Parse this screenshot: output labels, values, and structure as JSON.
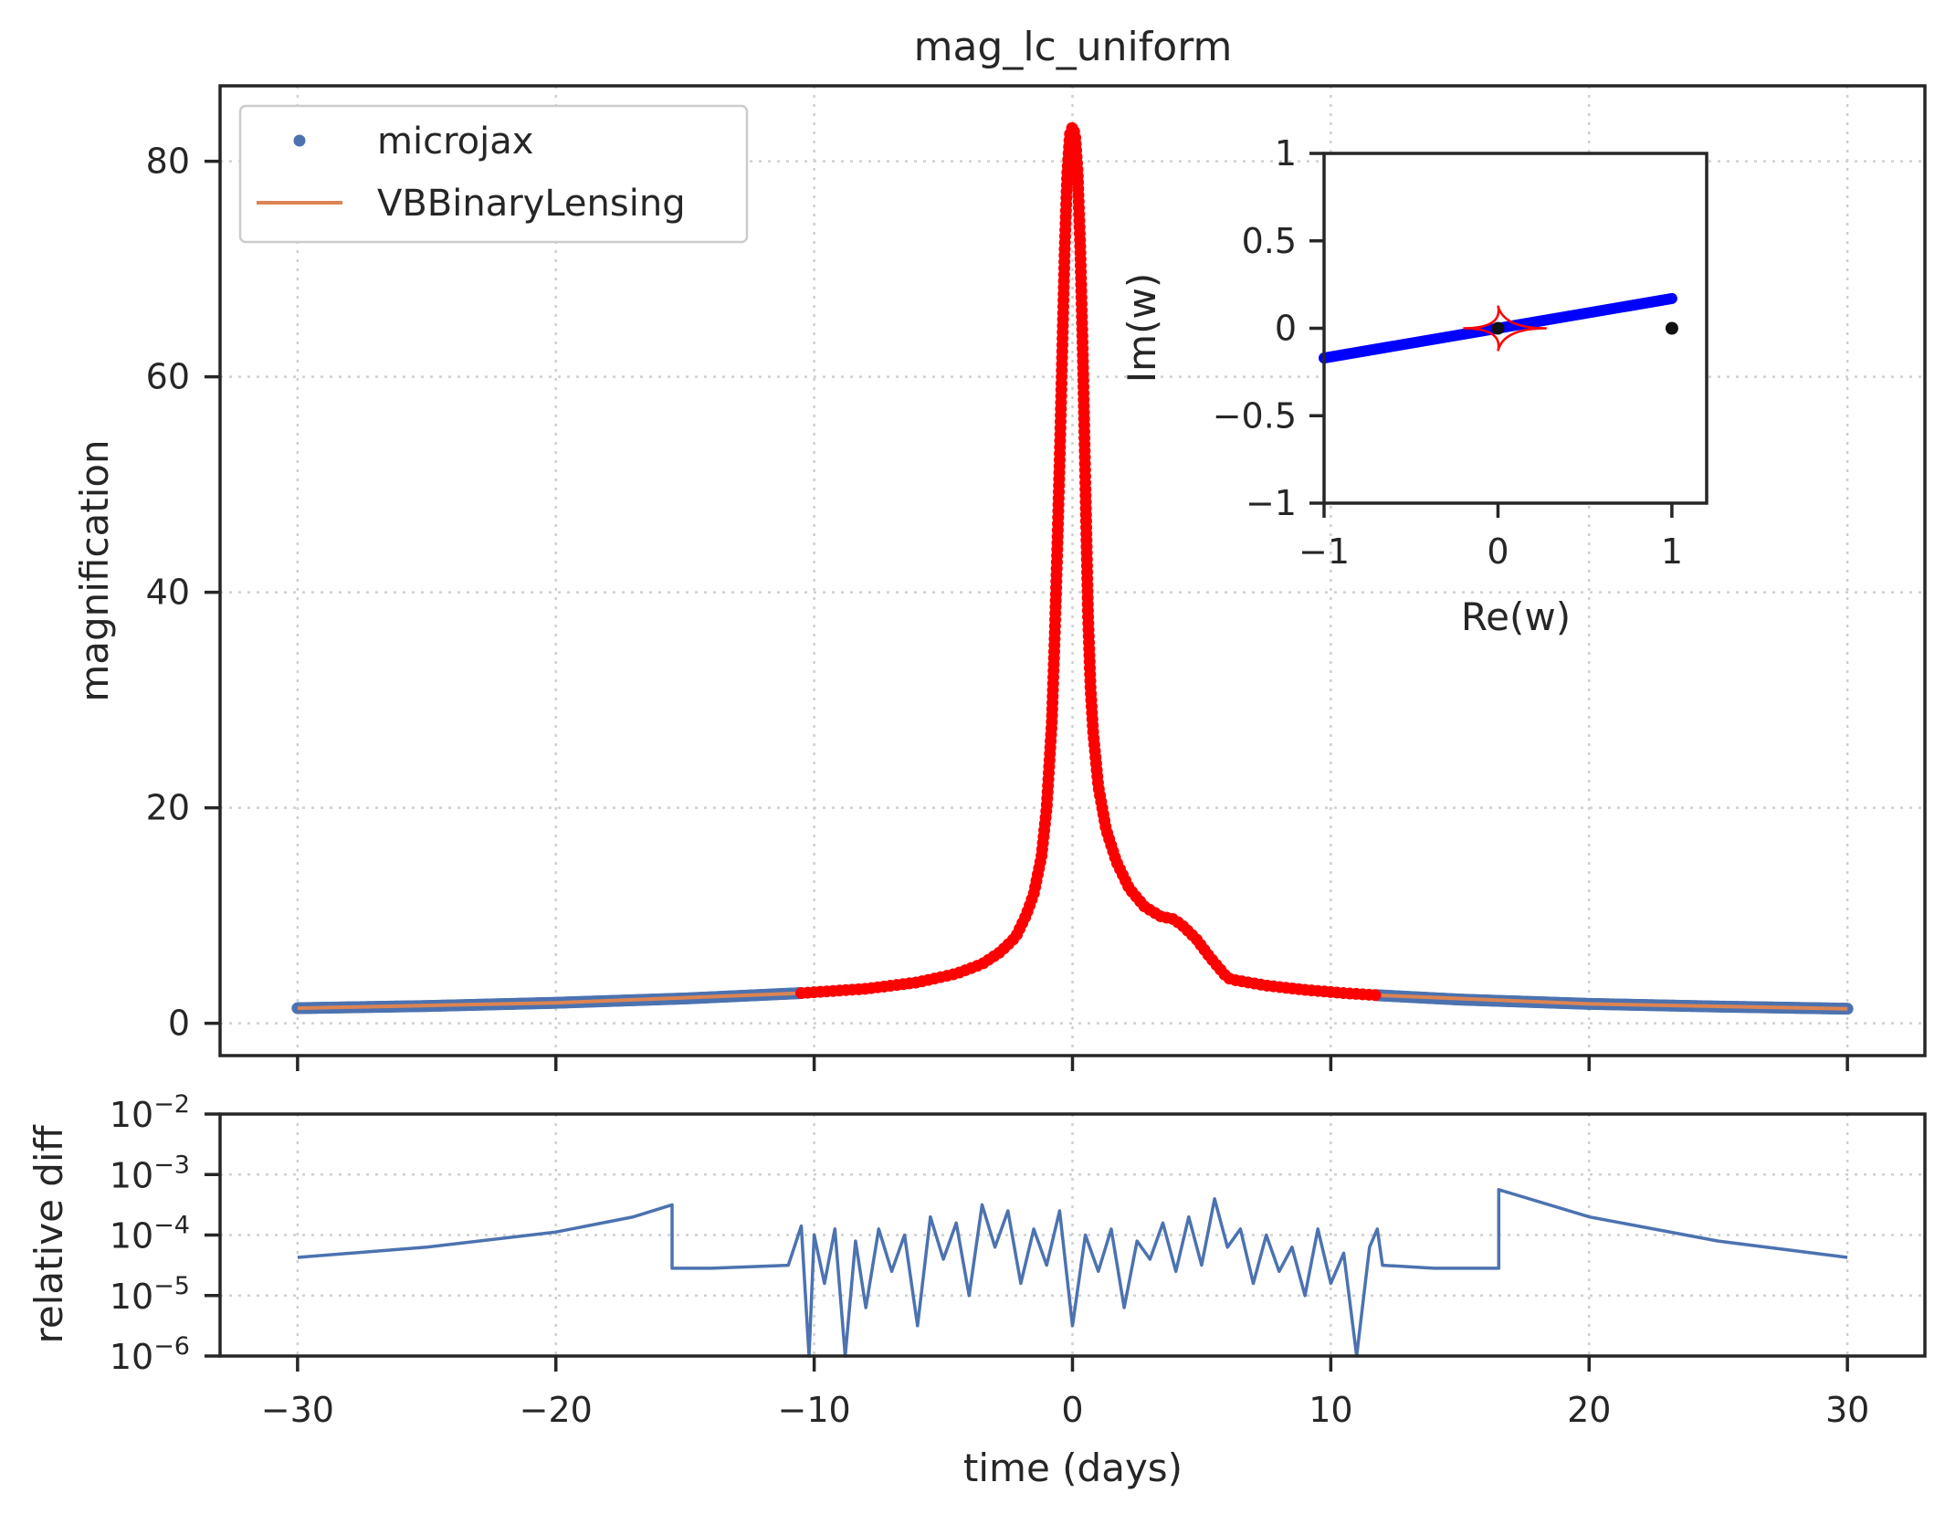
{
  "chart_data": [
    {
      "type": "line",
      "title": "mag_lc_uniform",
      "xlabel": "",
      "ylabel": "magnification",
      "xlim": [
        -33,
        33
      ],
      "ylim": [
        -3,
        87
      ],
      "xticks": [
        -30,
        -20,
        -10,
        0,
        10,
        20,
        30
      ],
      "yticks": [
        0,
        20,
        40,
        60,
        80
      ],
      "grid": true,
      "legend": {
        "placement": "top-left",
        "entries": [
          "microjax",
          "VBBinaryLensing"
        ]
      },
      "series": [
        {
          "name": "microjax",
          "style": "dots",
          "color": "#4c72b0",
          "x": [
            -30,
            -25,
            -20,
            -15,
            -10.5
          ],
          "y": [
            1.4,
            1.6,
            1.9,
            2.3,
            2.8
          ]
        },
        {
          "name": "microjax",
          "style": "dots",
          "color": "#4c72b0",
          "x": [
            11.8,
            15,
            20,
            25,
            30
          ],
          "y": [
            2.6,
            2.2,
            1.8,
            1.55,
            1.35
          ]
        },
        {
          "name": "microjax",
          "style": "dots",
          "color": "#ff0000",
          "x": [
            -10.5,
            -8,
            -6,
            -4.5,
            -3.5,
            -2.8,
            -2.2,
            -1.8,
            -1.5,
            -1.2,
            -1.0,
            -0.8,
            -0.7,
            -0.6,
            -0.5,
            -0.4,
            -0.3,
            -0.2,
            -0.1,
            0.0,
            0.1,
            0.2,
            0.3,
            0.4,
            0.5,
            0.6,
            0.7,
            0.8,
            1.0,
            1.3,
            1.7,
            2.2,
            2.8,
            3.5,
            3.8,
            4.2,
            4.8,
            5.3,
            6.0,
            6.3,
            7.5,
            9.0,
            10.5,
            11.8
          ],
          "y": [
            2.8,
            3.2,
            3.8,
            4.6,
            5.5,
            6.6,
            8.0,
            10.0,
            12.0,
            15.5,
            20.0,
            28.0,
            35.0,
            43.0,
            52.0,
            62.0,
            72.0,
            79.0,
            82.5,
            83.2,
            82.5,
            79.0,
            72.0,
            62.0,
            50.0,
            38.0,
            31.0,
            27.0,
            22.0,
            18.0,
            15.0,
            12.5,
            10.8,
            9.8,
            9.8,
            9.2,
            7.8,
            6.2,
            4.2,
            4.0,
            3.5,
            3.1,
            2.8,
            2.6
          ]
        },
        {
          "name": "VBBinaryLensing",
          "style": "line",
          "color": "#dd8452",
          "x": [
            -30,
            -20,
            -10.5,
            -6,
            -3.5,
            -2.2,
            -1.5,
            -1.0,
            -0.6,
            -0.3,
            -0.1,
            0.0,
            0.1,
            0.3,
            0.6,
            1.0,
            1.7,
            2.8,
            3.8,
            4.8,
            6.0,
            6.3,
            9.0,
            11.8,
            20,
            30
          ],
          "y": [
            1.4,
            1.9,
            2.8,
            3.8,
            5.5,
            8.0,
            12.0,
            20.0,
            43.0,
            72.0,
            82.5,
            83.2,
            82.5,
            72.0,
            38.0,
            22.0,
            15.0,
            10.8,
            9.8,
            7.8,
            4.2,
            4.0,
            3.1,
            2.6,
            1.8,
            1.35
          ]
        }
      ]
    },
    {
      "type": "scatter",
      "ylabel": "Im(w)",
      "xlabel": "Re(w)",
      "xlim": [
        -1,
        1.2
      ],
      "ylim": [
        -1,
        1
      ],
      "xticks": [
        -1,
        0,
        1
      ],
      "yticks": [
        -1.0,
        -0.5,
        0.0,
        0.5,
        1.0
      ],
      "grid": false,
      "series": [
        {
          "style": "line",
          "color": "#0000ff",
          "x": [
            -1.0,
            1.0
          ],
          "y": [
            -0.17,
            0.17
          ]
        },
        {
          "style": "points",
          "color": "#111111",
          "x": [
            0.0,
            1.0
          ],
          "y": [
            0.0,
            0.0
          ]
        },
        {
          "style": "caustic",
          "color": "#ff0000",
          "x": [
            0.28,
            0.0,
            -0.2,
            0.0,
            0.28
          ],
          "y": [
            0.0,
            0.13,
            0.0,
            -0.13,
            0.0
          ]
        }
      ]
    },
    {
      "type": "line",
      "xlabel": "time (days)",
      "ylabel": "relative diff",
      "scale": "log",
      "xlim": [
        -33,
        33
      ],
      "ylim": [
        -6,
        -2
      ],
      "xticks": [
        -30,
        -20,
        -10,
        0,
        10,
        20,
        30
      ],
      "yticks": [
        "10^-2",
        "10^-3",
        "10^-4",
        "10^-5",
        "10^-6"
      ],
      "grid": true,
      "series": [
        {
          "style": "line",
          "color": "#4c72b0",
          "x": [
            -30,
            -25,
            -20,
            -17,
            -15.5,
            -15.5,
            -14,
            -11,
            -11,
            -10.5,
            -10.2,
            -10.0,
            -9.6,
            -9.2,
            -8.8,
            -8.4,
            -8.0,
            -7.5,
            -7.0,
            -6.5,
            -6.0,
            -5.5,
            -5.0,
            -4.5,
            -4.0,
            -3.5,
            -3.0,
            -2.5,
            -2.0,
            -1.5,
            -1.0,
            -0.5,
            0.0,
            0.5,
            1.0,
            1.5,
            2.0,
            2.5,
            3.0,
            3.5,
            4.0,
            4.5,
            5.0,
            5.5,
            6.0,
            6.5,
            7.0,
            7.5,
            8.0,
            8.5,
            9.0,
            9.5,
            10.0,
            10.5,
            11.0,
            11.5,
            11.8,
            12.0,
            14,
            16.5,
            16.5,
            20,
            25,
            30
          ],
          "y": [
            -4.37,
            -4.2,
            -3.95,
            -3.7,
            -3.5,
            -4.55,
            -4.55,
            -4.5,
            -4.5,
            -3.85,
            -6.0,
            -4.0,
            -4.8,
            -3.9,
            -6.0,
            -4.1,
            -5.2,
            -3.9,
            -4.6,
            -4.0,
            -5.5,
            -3.7,
            -4.4,
            -3.8,
            -5.0,
            -3.5,
            -4.2,
            -3.6,
            -4.8,
            -3.9,
            -4.5,
            -3.6,
            -5.5,
            -4.0,
            -4.6,
            -3.9,
            -5.2,
            -4.1,
            -4.4,
            -3.8,
            -4.6,
            -3.7,
            -4.5,
            -3.4,
            -4.2,
            -3.9,
            -4.8,
            -4.0,
            -4.6,
            -4.2,
            -5.0,
            -3.9,
            -4.8,
            -4.3,
            -6.0,
            -4.2,
            -3.9,
            -4.5,
            -4.55,
            -4.55,
            -3.25,
            -3.7,
            -4.1,
            -4.37
          ]
        }
      ]
    }
  ]
}
